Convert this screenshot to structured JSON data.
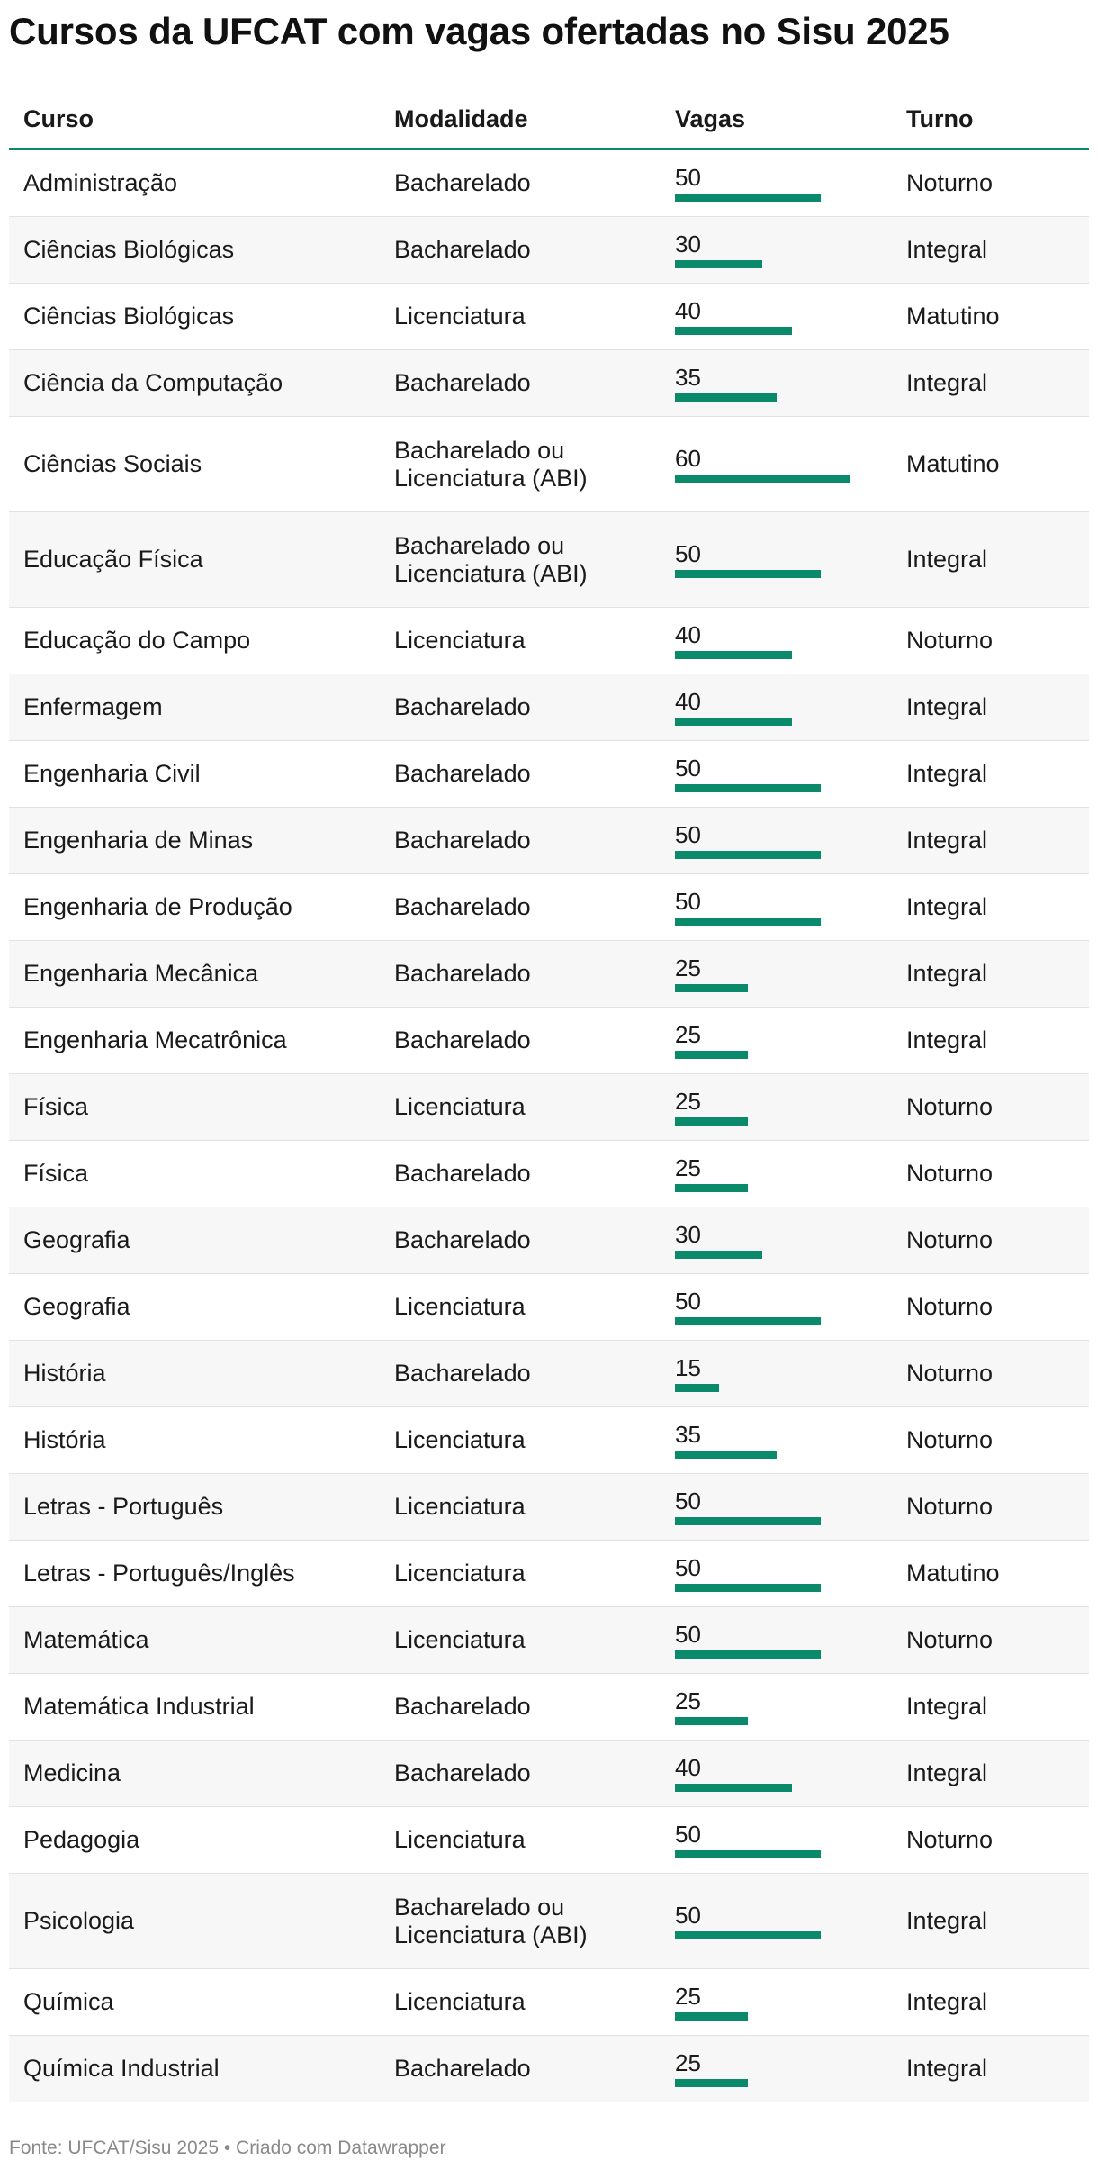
{
  "title": "Cursos da UFCAT com vagas ofertadas no Sisu 2025",
  "footer": "Fonte: UFCAT/Sisu 2025 • Criado com Datawrapper",
  "accent_color": "#0a8a6a",
  "chart_data": {
    "type": "table",
    "title": "Cursos da UFCAT com vagas ofertadas no Sisu 2025",
    "columns": [
      "Curso",
      "Modalidade",
      "Vagas",
      "Turno"
    ],
    "bar_column": "Vagas",
    "bar_max": 60,
    "rows": [
      {
        "curso": "Administração",
        "modalidade": "Bacharelado",
        "vagas": 50,
        "turno": "Noturno"
      },
      {
        "curso": "Ciências Biológicas",
        "modalidade": "Bacharelado",
        "vagas": 30,
        "turno": "Integral"
      },
      {
        "curso": "Ciências Biológicas",
        "modalidade": "Licenciatura",
        "vagas": 40,
        "turno": "Matutino"
      },
      {
        "curso": "Ciência da Computação",
        "modalidade": "Bacharelado",
        "vagas": 35,
        "turno": "Integral"
      },
      {
        "curso": "Ciências Sociais",
        "modalidade": "Bacharelado ou Licenciatura (ABI)",
        "vagas": 60,
        "turno": "Matutino"
      },
      {
        "curso": "Educação Física",
        "modalidade": "Bacharelado ou Licenciatura (ABI)",
        "vagas": 50,
        "turno": "Integral"
      },
      {
        "curso": "Educação do Campo",
        "modalidade": "Licenciatura",
        "vagas": 40,
        "turno": "Noturno"
      },
      {
        "curso": "Enfermagem",
        "modalidade": "Bacharelado",
        "vagas": 40,
        "turno": "Integral"
      },
      {
        "curso": "Engenharia Civil",
        "modalidade": "Bacharelado",
        "vagas": 50,
        "turno": "Integral"
      },
      {
        "curso": "Engenharia de Minas",
        "modalidade": "Bacharelado",
        "vagas": 50,
        "turno": "Integral"
      },
      {
        "curso": "Engenharia de Produção",
        "modalidade": "Bacharelado",
        "vagas": 50,
        "turno": "Integral"
      },
      {
        "curso": "Engenharia Mecânica",
        "modalidade": "Bacharelado",
        "vagas": 25,
        "turno": "Integral"
      },
      {
        "curso": "Engenharia Mecatrônica",
        "modalidade": "Bacharelado",
        "vagas": 25,
        "turno": "Integral"
      },
      {
        "curso": "Física",
        "modalidade": "Licenciatura",
        "vagas": 25,
        "turno": "Noturno"
      },
      {
        "curso": "Física",
        "modalidade": "Bacharelado",
        "vagas": 25,
        "turno": "Noturno"
      },
      {
        "curso": "Geografia",
        "modalidade": "Bacharelado",
        "vagas": 30,
        "turno": "Noturno"
      },
      {
        "curso": "Geografia",
        "modalidade": "Licenciatura",
        "vagas": 50,
        "turno": "Noturno"
      },
      {
        "curso": "História",
        "modalidade": "Bacharelado",
        "vagas": 15,
        "turno": "Noturno"
      },
      {
        "curso": "História",
        "modalidade": "Licenciatura",
        "vagas": 35,
        "turno": "Noturno"
      },
      {
        "curso": "Letras - Português",
        "modalidade": "Licenciatura",
        "vagas": 50,
        "turno": "Noturno"
      },
      {
        "curso": "Letras - Português/Inglês",
        "modalidade": "Licenciatura",
        "vagas": 50,
        "turno": "Matutino"
      },
      {
        "curso": "Matemática",
        "modalidade": "Licenciatura",
        "vagas": 50,
        "turno": "Noturno"
      },
      {
        "curso": "Matemática Industrial",
        "modalidade": "Bacharelado",
        "vagas": 25,
        "turno": "Integral"
      },
      {
        "curso": "Medicina",
        "modalidade": "Bacharelado",
        "vagas": 40,
        "turno": "Integral"
      },
      {
        "curso": "Pedagogia",
        "modalidade": "Licenciatura",
        "vagas": 50,
        "turno": "Noturno"
      },
      {
        "curso": "Psicologia",
        "modalidade": "Bacharelado ou Licenciatura (ABI)",
        "vagas": 50,
        "turno": "Integral"
      },
      {
        "curso": "Química",
        "modalidade": "Licenciatura",
        "vagas": 25,
        "turno": "Integral"
      },
      {
        "curso": "Química Industrial",
        "modalidade": "Bacharelado",
        "vagas": 25,
        "turno": "Integral"
      }
    ]
  }
}
